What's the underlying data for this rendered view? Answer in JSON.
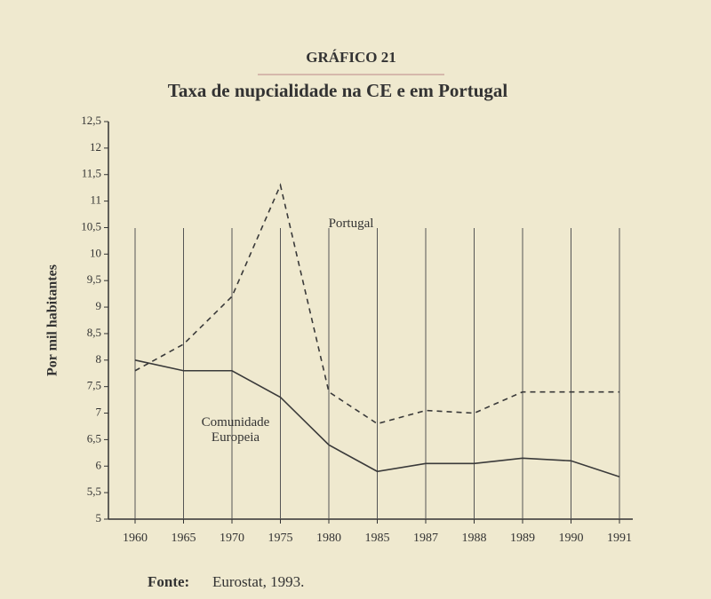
{
  "chart_data": {
    "type": "line",
    "kicker": "GRÁFICO 21",
    "title": "Taxa de nupcialidade na CE e em Portugal",
    "y_label": "Por mil habitantes",
    "source_label": "Fonte:",
    "source": "Eurostat, 1993.",
    "categories": [
      "1960",
      "1965",
      "1970",
      "1975",
      "1980",
      "1985",
      "1987",
      "1988",
      "1989",
      "1990",
      "1991"
    ],
    "series": [
      {
        "name": "Portugal",
        "color": "#3a3a3a",
        "style": "dashed",
        "values": [
          7.8,
          8.3,
          9.2,
          11.3,
          7.4,
          6.8,
          7.05,
          7.0,
          7.4,
          7.4,
          7.4
        ]
      },
      {
        "name": "Comunidade Europeia",
        "color": "#3a3a3a",
        "style": "solid",
        "values": [
          8.0,
          7.8,
          7.8,
          7.3,
          6.4,
          5.9,
          6.05,
          6.05,
          6.15,
          6.1,
          5.8
        ]
      }
    ],
    "ylim": [
      5,
      12.5
    ],
    "yticks": [
      5,
      {
        "value": 5.5,
        "label": "5,5"
      },
      6,
      {
        "value": 6.5,
        "label": "6,5"
      },
      7,
      {
        "value": 7.5,
        "label": "7,5"
      },
      8,
      {
        "value": 8.5,
        "label": "8,5"
      },
      9,
      {
        "value": 9.5,
        "label": "9,5"
      },
      10,
      {
        "value": 10.5,
        "label": "10,5"
      },
      11,
      {
        "value": 11.5,
        "label": "11,5"
      },
      12,
      {
        "value": 12.5,
        "label": "12,5"
      }
    ],
    "xgrid": true
  }
}
